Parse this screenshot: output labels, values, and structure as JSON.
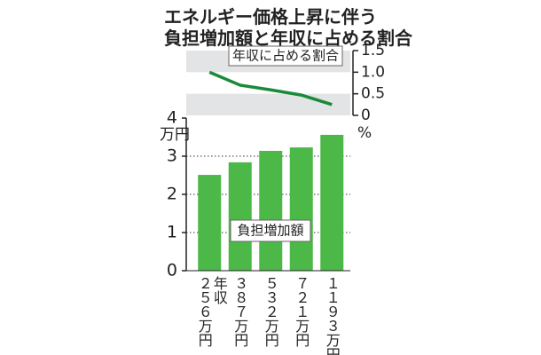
{
  "title": [
    "エネルギー価格上昇に伴う",
    "負担増加額と年収に占める割合"
  ],
  "chart_data": [
    {
      "type": "line",
      "annotation": "年収に占める割合",
      "unit_label": "%",
      "values": [
        1.0,
        0.7,
        0.59,
        0.47,
        0.25
      ],
      "color": "#1a8a3a",
      "ylim": [
        0,
        1.5
      ],
      "yticks": [
        0,
        0.5,
        {
          "value": 1,
          "label": "1.0"
        },
        1.5
      ],
      "alternate_bands": true
    },
    {
      "type": "bar",
      "annotation": "負担増加額",
      "unit_label": "万円",
      "x_label": "年収",
      "categories": [
        "２５６万円",
        "３８７万円",
        "５３２万円",
        "７２１万円",
        "１１９３万円"
      ],
      "values": [
        2.51,
        2.84,
        3.14,
        3.23,
        3.56
      ],
      "color": "#4cb848",
      "ylim": [
        0,
        4
      ],
      "yticks": [
        0,
        1,
        2,
        3,
        4
      ],
      "grid": true
    }
  ]
}
